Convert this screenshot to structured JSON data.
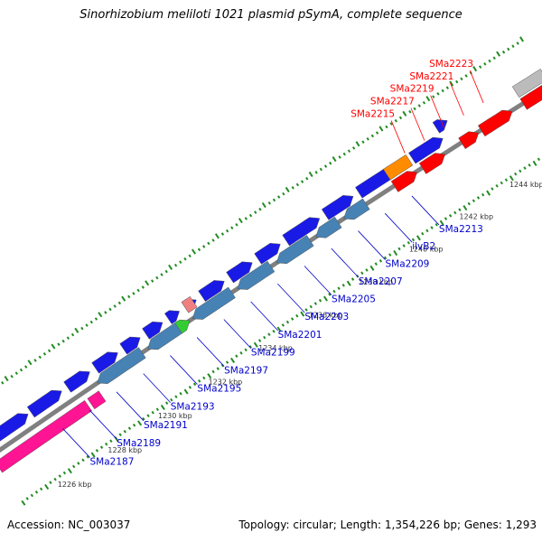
{
  "title": "Sinorhizobium meliloti 1021 plasmid pSymA, complete sequence",
  "footer": {
    "accession": "Accession: NC_003037",
    "summary": "Topology: circular; Length: 1,354,226 bp; Genes: 1,293"
  },
  "colors": {
    "forward_cds": "#1a1ae6",
    "reverse_cds": "#4682b4",
    "red_cds": "#ff0000",
    "magenta_cds": "#ff1493",
    "orange_cds": "#ff8c00",
    "green_cds": "#33cc33",
    "salmon_cds": "#f08080",
    "grey_cds": "#bbbbbb",
    "backbone": "#808080",
    "tick": "#228b22",
    "label_blue": "#0000cc",
    "label_red": "#ff0000"
  },
  "scale_labels": [
    {
      "text": "1226 kbp",
      "pos": 0.055
    },
    {
      "text": "1228 kbp",
      "pos": 0.145
    },
    {
      "text": "1230 kbp",
      "pos": 0.235
    },
    {
      "text": "1232 kbp",
      "pos": 0.325
    },
    {
      "text": "1234 kbp",
      "pos": 0.415
    },
    {
      "text": "1236 kbp",
      "pos": 0.505
    },
    {
      "text": "1238 kbp",
      "pos": 0.595
    },
    {
      "text": "1240 kbp",
      "pos": 0.685
    },
    {
      "text": "1242 kbp",
      "pos": 0.775
    },
    {
      "text": "1244 kbp",
      "pos": 0.865
    }
  ],
  "genes_blue": [
    {
      "label": "SMa2187"
    },
    {
      "label": "SMa2189"
    },
    {
      "label": "SMa2191"
    },
    {
      "label": "SMa2193"
    },
    {
      "label": "SMa2195"
    },
    {
      "label": "SMa2197"
    },
    {
      "label": "SMa2199"
    },
    {
      "label": "SMa2201"
    },
    {
      "label": "SMa2203"
    },
    {
      "label": "SMa2205"
    },
    {
      "label": "SMa2207"
    },
    {
      "label": "SMa2209"
    },
    {
      "label": "ilvB2"
    },
    {
      "label": "SMa2213"
    }
  ],
  "genes_red": [
    {
      "label": "SMa2215"
    },
    {
      "label": "SMa2217"
    },
    {
      "label": "SMa2219"
    },
    {
      "label": "SMa2221"
    },
    {
      "label": "SMa2223"
    }
  ]
}
